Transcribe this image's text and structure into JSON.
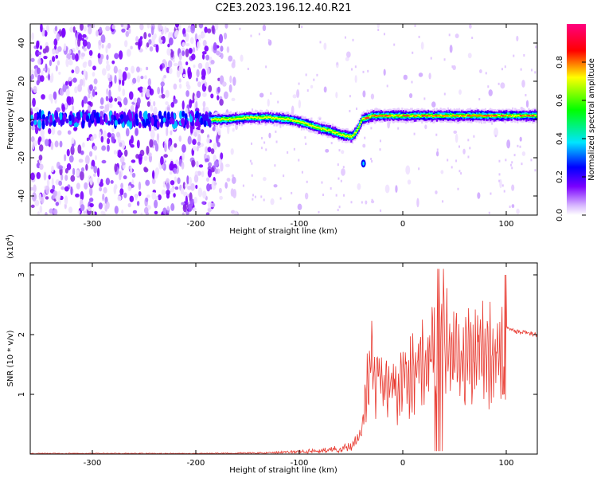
{
  "title": "C2E3.2023.196.12.40.R21",
  "chart_data": [
    {
      "type": "heatmap",
      "xlabel": "Height of straight line (km)",
      "ylabel": "Frequency (Hz)",
      "xlim": [
        -360,
        130
      ],
      "ylim": [
        -50,
        50
      ],
      "xticks": [
        -300,
        -200,
        -100,
        0,
        100
      ],
      "xtick_labels": [
        "-300",
        "-200",
        "-100",
        "0",
        "100"
      ],
      "yticks": [
        -40,
        -20,
        0,
        20,
        40
      ],
      "ytick_labels": [
        "-40",
        "-20",
        "0",
        "20",
        "40"
      ],
      "colorbar": {
        "label": "Normalized spectral amplitude",
        "range": [
          0.0,
          1.0
        ],
        "ticks": [
          0.0,
          0.2,
          0.4,
          0.6,
          0.8
        ],
        "tick_labels": [
          "0.0",
          "0.2",
          "0.4",
          "0.6",
          "0.8"
        ]
      },
      "ridge": {
        "name": "spectral ridge",
        "x": [
          -185,
          -170,
          -150,
          -130,
          -110,
          -95,
          -85,
          -70,
          -60,
          -50,
          -45,
          -40,
          -30,
          -20,
          0,
          40,
          80,
          100,
          130
        ],
        "y": [
          0,
          0,
          1,
          1,
          0,
          -2,
          -4,
          -6,
          -8,
          -9,
          -6,
          0,
          2,
          2,
          2,
          2,
          2,
          2,
          2
        ]
      }
    },
    {
      "type": "line",
      "xlabel": "Height of straight line (km)",
      "ylabel": "SNR (10 * v/v)",
      "ylabel_exponent": "(x10",
      "ylabel_exponent_power": "4",
      "ylabel_exponent_close": ")",
      "xlim": [
        -360,
        130
      ],
      "ylim": [
        0,
        3.2
      ],
      "xticks": [
        -300,
        -200,
        -100,
        0,
        100
      ],
      "xtick_labels": [
        "-300",
        "-200",
        "-100",
        "0",
        "100"
      ],
      "yticks": [
        1,
        2,
        3
      ],
      "ytick_labels": [
        "1",
        "2",
        "3"
      ],
      "color": "#e8392f",
      "envelope": {
        "x": [
          -360,
          -200,
          -130,
          -100,
          -70,
          -50,
          -40,
          -35,
          -30,
          -20,
          -10,
          0,
          10,
          20,
          30,
          35,
          40,
          50,
          60,
          80,
          95,
          100,
          110,
          130
        ],
        "y": [
          0.01,
          0.01,
          0.02,
          0.04,
          0.07,
          0.12,
          0.5,
          1.4,
          2.0,
          1.6,
          1.4,
          1.6,
          1.8,
          2.0,
          2.2,
          2.6,
          2.6,
          2.1,
          2.2,
          2.2,
          2.1,
          2.1,
          2.05,
          2.0
        ]
      }
    }
  ]
}
